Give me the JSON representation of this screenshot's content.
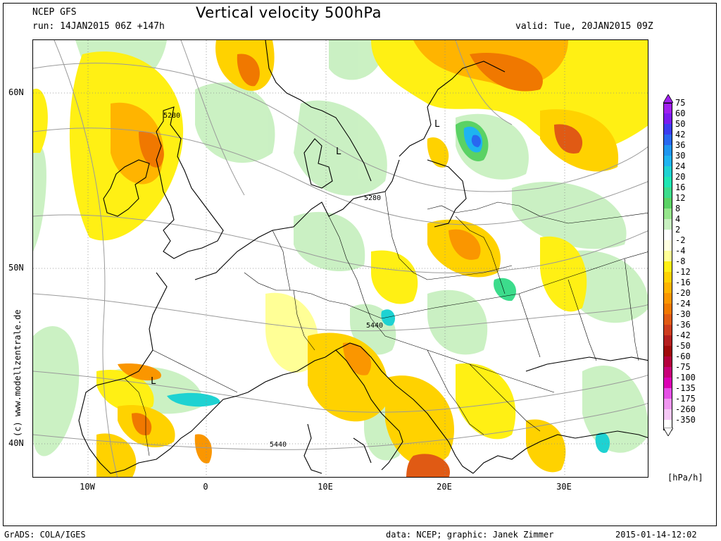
{
  "header": {
    "model": "NCEP GFS",
    "run": "run: 14JAN2015 06Z +147h",
    "title": "Vertical velocity 500hPa",
    "valid": "valid: Tue, 20JAN2015 09Z"
  },
  "axes": {
    "lat_labels": [
      "60N",
      "50N",
      "40N"
    ],
    "lon_labels": [
      "10W",
      "0",
      "10E",
      "20E",
      "30E"
    ]
  },
  "map": {
    "contour_labels": [
      "5280",
      "5280",
      "5440",
      "5440"
    ],
    "low_markers": [
      "L",
      "L",
      "L"
    ]
  },
  "legend": {
    "unit": "[hPa/h]",
    "items": [
      {
        "label": "75",
        "color": "#a020f0"
      },
      {
        "label": "60",
        "color": "#7a1cf0"
      },
      {
        "label": "50",
        "color": "#3c3cf0"
      },
      {
        "label": "42",
        "color": "#2868f0"
      },
      {
        "label": "36",
        "color": "#1e96f0"
      },
      {
        "label": "30",
        "color": "#1eb4f0"
      },
      {
        "label": "24",
        "color": "#1ed2d2"
      },
      {
        "label": "20",
        "color": "#1ee6b4"
      },
      {
        "label": "16",
        "color": "#3cdc8c"
      },
      {
        "label": "12",
        "color": "#5ad264"
      },
      {
        "label": "8",
        "color": "#96e68c"
      },
      {
        "label": "4",
        "color": "#c8f0c0"
      },
      {
        "label": "2",
        "color": "#ffffff"
      },
      {
        "label": "-2",
        "color": "#ffffe0"
      },
      {
        "label": "-4",
        "color": "#ffff96"
      },
      {
        "label": "-8",
        "color": "#fff014"
      },
      {
        "label": "-12",
        "color": "#ffd200"
      },
      {
        "label": "-16",
        "color": "#ffb400"
      },
      {
        "label": "-20",
        "color": "#fa9600"
      },
      {
        "label": "-24",
        "color": "#f07800"
      },
      {
        "label": "-30",
        "color": "#e05a14"
      },
      {
        "label": "-36",
        "color": "#cd3c1e"
      },
      {
        "label": "-42",
        "color": "#b41e1e"
      },
      {
        "label": "-50",
        "color": "#a00a0a"
      },
      {
        "label": "-60",
        "color": "#b4003c"
      },
      {
        "label": "-75",
        "color": "#c80078"
      },
      {
        "label": "-100",
        "color": "#dc00b4"
      },
      {
        "label": "-135",
        "color": "#e650e6"
      },
      {
        "label": "-175",
        "color": "#f096f0"
      },
      {
        "label": "-260",
        "color": "#f5c8f5"
      },
      {
        "label": "-350",
        "color": "#ffffff"
      }
    ]
  },
  "watermark": "(c) www.modellzentrale.de",
  "footer": {
    "left": "GrADS: COLA/IGES",
    "center": "data: NCEP; graphic: Janek Zimmer",
    "right": "2015-01-14-12:02"
  }
}
